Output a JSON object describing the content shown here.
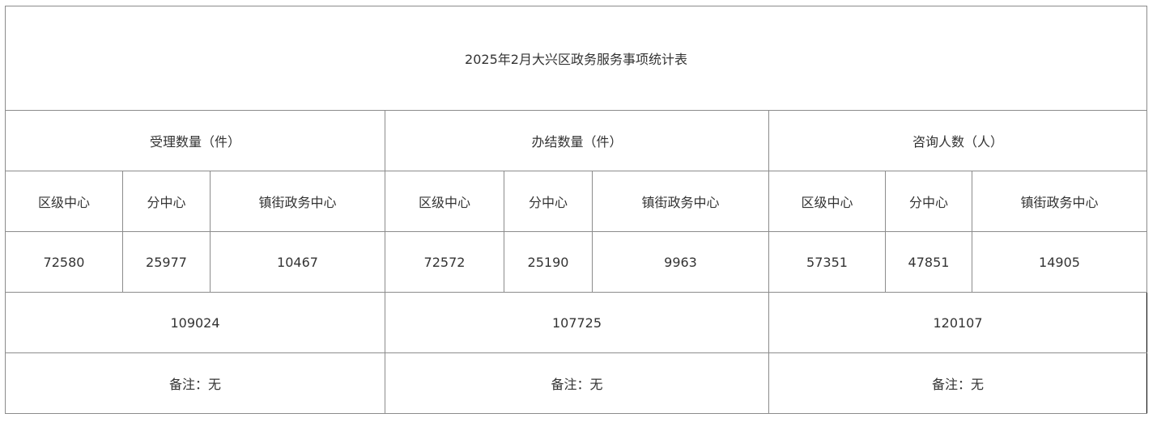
{
  "title": "2025年2月大兴区政务服务事项统计表",
  "groups": [
    {
      "header": "受理数量（件）",
      "sub": [
        "区级中心",
        "分中心",
        "镇街政务中心"
      ],
      "values": [
        "72580",
        "25977",
        "10467"
      ],
      "total": "109024",
      "note": "备注：无"
    },
    {
      "header": "办结数量（件）",
      "sub": [
        "区级中心",
        "分中心",
        "镇街政务中心"
      ],
      "values": [
        "72572",
        "25190",
        "9963"
      ],
      "total": "107725",
      "note": "备注：无"
    },
    {
      "header": "咨询人数（人）",
      "sub": [
        "区级中心",
        "分中心",
        "镇街政务中心"
      ],
      "values": [
        "57351",
        "47851",
        "14905"
      ],
      "total": "120107",
      "note": "备注：无"
    }
  ]
}
